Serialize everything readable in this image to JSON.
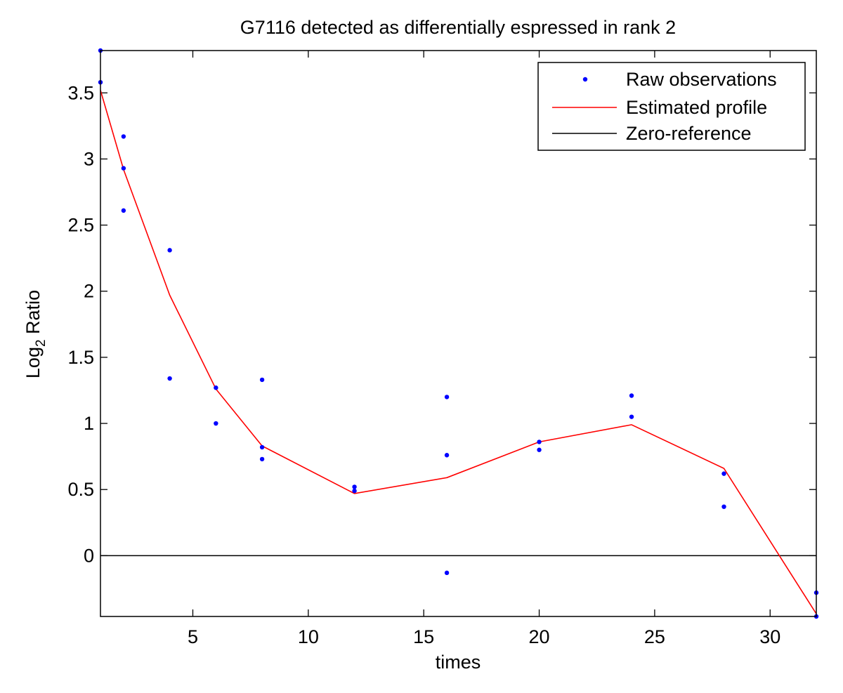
{
  "chart_data": {
    "type": "line",
    "title": "G7116 detected as differentially espressed in rank 2",
    "xlabel": "times",
    "ylabel": "Log",
    "ylabel_sub": "2",
    "ylabel_suffix": " Ratio",
    "xlim": [
      1,
      32
    ],
    "ylim": [
      -0.46,
      3.82
    ],
    "x_ticks": [
      5,
      10,
      15,
      20,
      25,
      30
    ],
    "y_ticks": [
      0,
      0.5,
      1,
      1.5,
      2,
      2.5,
      3,
      3.5
    ],
    "x_tick_labels": [
      "5",
      "10",
      "15",
      "20",
      "25",
      "30"
    ],
    "y_tick_labels": [
      "0",
      "0.5",
      "1",
      "1.5",
      "2",
      "2.5",
      "3",
      "3.5"
    ],
    "grid": false,
    "legend_position": "top-right",
    "series": [
      {
        "name": "Raw observations",
        "kind": "scatter",
        "color": "#0000ff",
        "points": [
          [
            1,
            3.82
          ],
          [
            1,
            3.58
          ],
          [
            2,
            3.17
          ],
          [
            2,
            2.93
          ],
          [
            2,
            2.61
          ],
          [
            4,
            2.31
          ],
          [
            4,
            1.34
          ],
          [
            6,
            1.27
          ],
          [
            6,
            1.0
          ],
          [
            8,
            1.33
          ],
          [
            8,
            0.82
          ],
          [
            8,
            0.73
          ],
          [
            12,
            0.52
          ],
          [
            12,
            0.49
          ],
          [
            16,
            1.2
          ],
          [
            16,
            0.76
          ],
          [
            16,
            -0.13
          ],
          [
            20,
            0.86
          ],
          [
            20,
            0.8
          ],
          [
            24,
            1.21
          ],
          [
            24,
            1.05
          ],
          [
            28,
            0.62
          ],
          [
            28,
            0.37
          ],
          [
            32,
            -0.28
          ],
          [
            32,
            -0.46
          ]
        ]
      },
      {
        "name": "Estimated profile",
        "kind": "line",
        "color": "#ff0000",
        "points": [
          [
            1,
            3.52
          ],
          [
            2,
            2.92
          ],
          [
            4,
            1.97
          ],
          [
            6,
            1.26
          ],
          [
            8,
            0.83
          ],
          [
            12,
            0.47
          ],
          [
            16,
            0.59
          ],
          [
            20,
            0.86
          ],
          [
            24,
            0.99
          ],
          [
            28,
            0.66
          ],
          [
            32,
            -0.44
          ]
        ]
      },
      {
        "name": "Zero-reference",
        "kind": "hline",
        "color": "#000000",
        "y": 0
      }
    ]
  }
}
